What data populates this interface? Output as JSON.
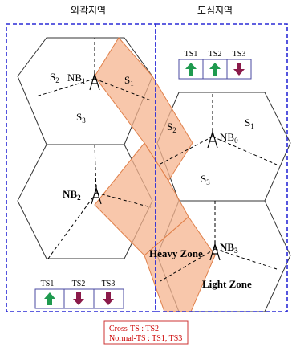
{
  "regions": {
    "suburban": "외곽지역",
    "urban": "도심지역"
  },
  "cells": {
    "top_left": {
      "station": "NB",
      "station_sub": "1",
      "sectors": [
        {
          "t": "S",
          "s": "2"
        },
        {
          "t": "S",
          "s": "1"
        },
        {
          "t": "S",
          "s": "3"
        }
      ]
    },
    "mid_left": {
      "station": "NB",
      "station_sub": "2"
    },
    "top_right": {
      "station": "NB",
      "station_sub": "0",
      "sectors": [
        {
          "t": "S",
          "s": "2"
        },
        {
          "t": "S",
          "s": "1"
        },
        {
          "t": "S",
          "s": "3"
        }
      ]
    },
    "bottom_right": {
      "station": "NB",
      "station_sub": "3"
    }
  },
  "zones": {
    "heavy": "Heavy Zone",
    "light": "Light Zone"
  },
  "ts_urban": [
    {
      "label": "TS1",
      "dir": "up"
    },
    {
      "label": "TS2",
      "dir": "up"
    },
    {
      "label": "TS3",
      "dir": "down"
    }
  ],
  "ts_suburban": [
    {
      "label": "TS1",
      "dir": "up"
    },
    {
      "label": "TS2",
      "dir": "down"
    },
    {
      "label": "TS3",
      "dir": "down"
    }
  ],
  "legend": {
    "line1": "Cross-TS : TS2",
    "line2": "Normal-TS : TS1, TS3"
  },
  "colors": {
    "up_arrow": "#1f9a4f",
    "down_arrow": "#8b1a4a",
    "region_border": "#2b2bd6",
    "highlight_fill": "#f6b48f",
    "highlight_stroke": "#e0804a",
    "legend_border": "#cc3333"
  }
}
